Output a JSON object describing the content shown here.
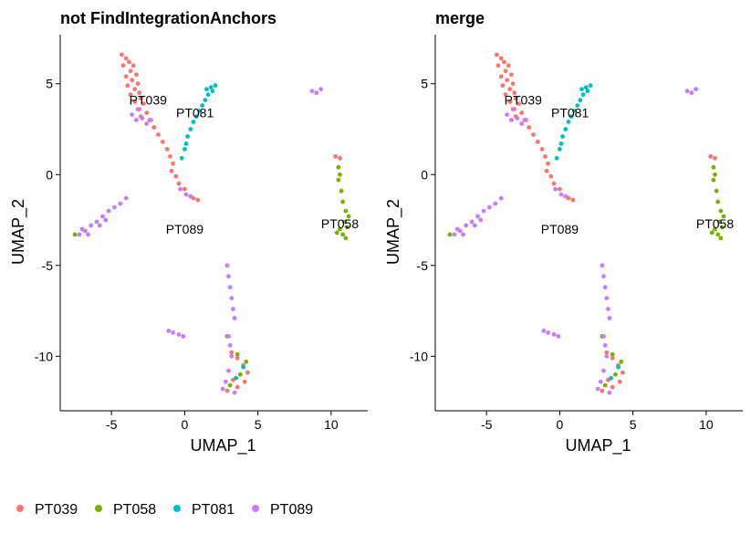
{
  "legend": {
    "position": "bottom",
    "items": [
      {
        "label": "PT039",
        "color": "#F8766D"
      },
      {
        "label": "PT058",
        "color": "#7CAE00"
      },
      {
        "label": "PT081",
        "color": "#00BFC4"
      },
      {
        "label": "PT089",
        "color": "#C77CFF"
      }
    ]
  },
  "chart_data": [
    {
      "type": "scatter",
      "title": "not FindIntegrationAnchors",
      "xlabel": "UMAP_1",
      "ylabel": "UMAP_2",
      "xlim": [
        -8.5,
        12.5
      ],
      "ylim": [
        -13,
        7.7
      ],
      "xticks": [
        -5,
        0,
        5,
        10
      ],
      "xtick_labels": [
        "-5",
        "0",
        "5",
        "10"
      ],
      "yticks": [
        5,
        0,
        -5,
        -10
      ],
      "ytick_labels": [
        "5",
        "0",
        "-5",
        "-10"
      ],
      "grid": false,
      "annotations": [
        {
          "text": "PT039",
          "x": -2.5,
          "y": 4.1
        },
        {
          "text": "PT081",
          "x": 0.7,
          "y": 3.4
        },
        {
          "text": "PT089",
          "x": 0.0,
          "y": -3.0
        },
        {
          "text": "PT058",
          "x": 10.6,
          "y": -2.7
        }
      ],
      "series": [
        {
          "name": "PT039",
          "color": "#F8766D",
          "points": [
            [
              -4.3,
              6.6
            ],
            [
              -4.0,
              6.4
            ],
            [
              -3.8,
              6.2
            ],
            [
              -3.5,
              6.0
            ],
            [
              -4.2,
              6.0
            ],
            [
              -3.7,
              5.7
            ],
            [
              -3.3,
              5.5
            ],
            [
              -4.0,
              5.4
            ],
            [
              -3.6,
              5.2
            ],
            [
              -3.2,
              5.0
            ],
            [
              -3.9,
              4.9
            ],
            [
              -3.4,
              4.7
            ],
            [
              -3.1,
              4.5
            ],
            [
              -3.7,
              4.4
            ],
            [
              -3.0,
              4.2
            ],
            [
              -3.4,
              4.0
            ],
            [
              -2.8,
              3.9
            ],
            [
              -3.2,
              3.6
            ],
            [
              -2.6,
              3.4
            ],
            [
              -3.0,
              3.2
            ],
            [
              -2.4,
              3.0
            ],
            [
              -2.1,
              2.6
            ],
            [
              -1.8,
              2.2
            ],
            [
              -1.5,
              1.8
            ],
            [
              -1.2,
              1.4
            ],
            [
              -1.0,
              1.0
            ],
            [
              -0.8,
              0.6
            ],
            [
              -0.9,
              0.2
            ],
            [
              -0.6,
              -0.1
            ],
            [
              -0.4,
              -0.5
            ],
            [
              0.0,
              -0.8
            ],
            [
              0.6,
              -1.3
            ],
            [
              0.9,
              -1.4
            ],
            [
              10.3,
              1.0
            ],
            [
              10.6,
              0.9
            ],
            [
              3.2,
              -9.8
            ],
            [
              3.6,
              -10.1
            ],
            [
              4.0,
              -10.5
            ],
            [
              4.3,
              -10.9
            ],
            [
              3.3,
              -11.3
            ],
            [
              3.6,
              -11.7
            ],
            [
              2.9,
              -11.9
            ],
            [
              4.1,
              -11.4
            ]
          ]
        },
        {
          "name": "PT058",
          "color": "#7CAE00",
          "points": [
            [
              10.5,
              0.4
            ],
            [
              10.6,
              0.0
            ],
            [
              10.5,
              -0.3
            ],
            [
              10.7,
              -0.9
            ],
            [
              10.8,
              -1.5
            ],
            [
              11.0,
              -2.0
            ],
            [
              11.2,
              -2.3
            ],
            [
              10.9,
              -2.6
            ],
            [
              11.1,
              -2.9
            ],
            [
              10.6,
              -3.0
            ],
            [
              10.8,
              -3.3
            ],
            [
              11.0,
              -3.5
            ],
            [
              10.4,
              -3.2
            ],
            [
              -7.5,
              -3.3
            ],
            [
              2.9,
              -8.9
            ],
            [
              3.6,
              -9.9
            ],
            [
              4.2,
              -10.3
            ],
            [
              3.8,
              -11.0
            ],
            [
              3.1,
              -11.6
            ]
          ]
        },
        {
          "name": "PT081",
          "color": "#00BFC4",
          "points": [
            [
              2.1,
              4.9
            ],
            [
              1.9,
              4.6
            ],
            [
              1.6,
              4.4
            ],
            [
              1.4,
              4.1
            ],
            [
              1.2,
              3.8
            ],
            [
              1.0,
              3.5
            ],
            [
              0.8,
              3.2
            ],
            [
              0.6,
              2.9
            ],
            [
              0.4,
              2.5
            ],
            [
              0.2,
              2.1
            ],
            [
              0.1,
              1.7
            ],
            [
              0.0,
              1.4
            ],
            [
              -0.2,
              0.9
            ],
            [
              1.8,
              4.8
            ],
            [
              1.5,
              4.7
            ],
            [
              4.0,
              -10.6
            ],
            [
              3.5,
              -11.2
            ]
          ]
        },
        {
          "name": "PT089",
          "color": "#C77CFF",
          "points": [
            [
              -3.6,
              3.3
            ],
            [
              -3.3,
              3.0
            ],
            [
              -2.9,
              3.1
            ],
            [
              -2.6,
              2.8
            ],
            [
              -2.3,
              3.0
            ],
            [
              -3.1,
              3.6
            ],
            [
              -0.3,
              -0.8
            ],
            [
              0.1,
              -1.1
            ],
            [
              0.4,
              -1.2
            ],
            [
              8.7,
              4.6
            ],
            [
              9.0,
              4.5
            ],
            [
              9.3,
              4.7
            ],
            [
              -7.2,
              -3.3
            ],
            [
              -6.8,
              -3.1
            ],
            [
              -6.4,
              -2.8
            ],
            [
              -6.0,
              -2.6
            ],
            [
              -5.6,
              -2.3
            ],
            [
              -5.2,
              -2.0
            ],
            [
              -4.8,
              -1.8
            ],
            [
              -4.4,
              -1.6
            ],
            [
              -4.0,
              -1.3
            ],
            [
              -6.6,
              -3.3
            ],
            [
              -7.0,
              -3.0
            ],
            [
              -5.8,
              -2.8
            ],
            [
              -5.4,
              -2.5
            ],
            [
              -1.1,
              -8.6
            ],
            [
              -0.8,
              -8.7
            ],
            [
              -0.4,
              -8.8
            ],
            [
              -0.1,
              -8.9
            ],
            [
              2.9,
              -5.0
            ],
            [
              3.0,
              -5.6
            ],
            [
              3.1,
              -6.2
            ],
            [
              3.2,
              -6.8
            ],
            [
              3.3,
              -7.4
            ],
            [
              3.4,
              -7.9
            ],
            [
              3.0,
              -8.9
            ],
            [
              3.1,
              -9.4
            ],
            [
              3.2,
              -10.0
            ],
            [
              3.0,
              -10.8
            ],
            [
              2.8,
              -11.4
            ],
            [
              3.4,
              -12.0
            ],
            [
              2.6,
              -11.8
            ]
          ]
        }
      ]
    },
    {
      "type": "scatter",
      "title": "merge",
      "xlabel": "UMAP_1",
      "ylabel": "UMAP_2",
      "xlim": [
        -8.5,
        12.5
      ],
      "ylim": [
        -13,
        7.7
      ],
      "xticks": [
        -5,
        0,
        5,
        10
      ],
      "xtick_labels": [
        "-5",
        "0",
        "5",
        "10"
      ],
      "yticks": [
        5,
        0,
        -5,
        -10
      ],
      "ytick_labels": [
        "5",
        "0",
        "-5",
        "-10"
      ],
      "grid": false,
      "annotations": [
        {
          "text": "PT039",
          "x": -2.5,
          "y": 4.1
        },
        {
          "text": "PT081",
          "x": 0.7,
          "y": 3.4
        },
        {
          "text": "PT089",
          "x": 0.0,
          "y": -3.0
        },
        {
          "text": "PT058",
          "x": 10.6,
          "y": -2.7
        }
      ],
      "series": [
        {
          "name": "PT039",
          "color": "#F8766D",
          "points": [
            [
              -4.3,
              6.6
            ],
            [
              -4.0,
              6.4
            ],
            [
              -3.8,
              6.2
            ],
            [
              -3.5,
              6.0
            ],
            [
              -4.2,
              6.0
            ],
            [
              -3.7,
              5.7
            ],
            [
              -3.3,
              5.5
            ],
            [
              -4.0,
              5.4
            ],
            [
              -3.6,
              5.2
            ],
            [
              -3.2,
              5.0
            ],
            [
              -3.9,
              4.9
            ],
            [
              -3.4,
              4.7
            ],
            [
              -3.1,
              4.5
            ],
            [
              -3.7,
              4.4
            ],
            [
              -3.0,
              4.2
            ],
            [
              -3.4,
              4.0
            ],
            [
              -2.8,
              3.9
            ],
            [
              -3.2,
              3.6
            ],
            [
              -2.6,
              3.4
            ],
            [
              -3.0,
              3.2
            ],
            [
              -2.4,
              3.0
            ],
            [
              -2.1,
              2.6
            ],
            [
              -1.8,
              2.2
            ],
            [
              -1.5,
              1.8
            ],
            [
              -1.2,
              1.4
            ],
            [
              -1.0,
              1.0
            ],
            [
              -0.8,
              0.6
            ],
            [
              -0.9,
              0.2
            ],
            [
              -0.6,
              -0.1
            ],
            [
              -0.4,
              -0.5
            ],
            [
              0.0,
              -0.8
            ],
            [
              0.6,
              -1.3
            ],
            [
              0.9,
              -1.4
            ],
            [
              10.3,
              1.0
            ],
            [
              10.6,
              0.9
            ],
            [
              3.2,
              -9.8
            ],
            [
              3.6,
              -10.1
            ],
            [
              4.0,
              -10.5
            ],
            [
              4.3,
              -10.9
            ],
            [
              3.3,
              -11.3
            ],
            [
              3.6,
              -11.7
            ],
            [
              2.9,
              -11.9
            ],
            [
              4.1,
              -11.4
            ]
          ]
        },
        {
          "name": "PT058",
          "color": "#7CAE00",
          "points": [
            [
              10.5,
              0.4
            ],
            [
              10.6,
              0.0
            ],
            [
              10.5,
              -0.3
            ],
            [
              10.7,
              -0.9
            ],
            [
              10.8,
              -1.5
            ],
            [
              11.0,
              -2.0
            ],
            [
              11.2,
              -2.3
            ],
            [
              10.9,
              -2.6
            ],
            [
              11.1,
              -2.9
            ],
            [
              10.6,
              -3.0
            ],
            [
              10.8,
              -3.3
            ],
            [
              11.0,
              -3.5
            ],
            [
              10.4,
              -3.2
            ],
            [
              -7.5,
              -3.3
            ],
            [
              2.9,
              -8.9
            ],
            [
              3.6,
              -9.9
            ],
            [
              4.2,
              -10.3
            ],
            [
              3.8,
              -11.0
            ],
            [
              3.1,
              -11.6
            ]
          ]
        },
        {
          "name": "PT081",
          "color": "#00BFC4",
          "points": [
            [
              2.1,
              4.9
            ],
            [
              1.9,
              4.6
            ],
            [
              1.6,
              4.4
            ],
            [
              1.4,
              4.1
            ],
            [
              1.2,
              3.8
            ],
            [
              1.0,
              3.5
            ],
            [
              0.8,
              3.2
            ],
            [
              0.6,
              2.9
            ],
            [
              0.4,
              2.5
            ],
            [
              0.2,
              2.1
            ],
            [
              0.1,
              1.7
            ],
            [
              0.0,
              1.4
            ],
            [
              -0.2,
              0.9
            ],
            [
              1.8,
              4.8
            ],
            [
              1.5,
              4.7
            ],
            [
              4.0,
              -10.6
            ],
            [
              3.5,
              -11.2
            ]
          ]
        },
        {
          "name": "PT089",
          "color": "#C77CFF",
          "points": [
            [
              -3.6,
              3.3
            ],
            [
              -3.3,
              3.0
            ],
            [
              -2.9,
              3.1
            ],
            [
              -2.6,
              2.8
            ],
            [
              -2.3,
              3.0
            ],
            [
              -3.1,
              3.6
            ],
            [
              -0.3,
              -0.8
            ],
            [
              0.1,
              -1.1
            ],
            [
              0.4,
              -1.2
            ],
            [
              8.7,
              4.6
            ],
            [
              9.0,
              4.5
            ],
            [
              9.3,
              4.7
            ],
            [
              -7.2,
              -3.3
            ],
            [
              -6.8,
              -3.1
            ],
            [
              -6.4,
              -2.8
            ],
            [
              -6.0,
              -2.6
            ],
            [
              -5.6,
              -2.3
            ],
            [
              -5.2,
              -2.0
            ],
            [
              -4.8,
              -1.8
            ],
            [
              -4.4,
              -1.6
            ],
            [
              -4.0,
              -1.3
            ],
            [
              -6.6,
              -3.3
            ],
            [
              -7.0,
              -3.0
            ],
            [
              -5.8,
              -2.8
            ],
            [
              -5.4,
              -2.5
            ],
            [
              -1.1,
              -8.6
            ],
            [
              -0.8,
              -8.7
            ],
            [
              -0.4,
              -8.8
            ],
            [
              -0.1,
              -8.9
            ],
            [
              2.9,
              -5.0
            ],
            [
              3.0,
              -5.6
            ],
            [
              3.1,
              -6.2
            ],
            [
              3.2,
              -6.8
            ],
            [
              3.3,
              -7.4
            ],
            [
              3.4,
              -7.9
            ],
            [
              3.0,
              -8.9
            ],
            [
              3.1,
              -9.4
            ],
            [
              3.2,
              -10.0
            ],
            [
              3.0,
              -10.8
            ],
            [
              2.8,
              -11.4
            ],
            [
              3.4,
              -12.0
            ],
            [
              2.6,
              -11.8
            ]
          ]
        }
      ]
    }
  ]
}
